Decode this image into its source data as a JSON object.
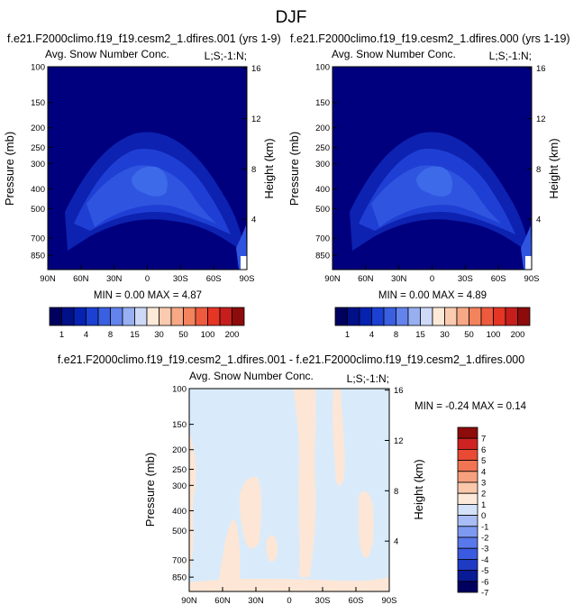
{
  "title": "DJF",
  "panels": [
    {
      "case_title": "f.e21.F2000climo.f19_f19.cesm2_1.dfires.001 (yrs 1-9)",
      "left_label": "Avg. Snow Number Conc.",
      "right_label": "L;S;-1:N;",
      "stats": "MIN =  0.00  MAX =  4.87"
    },
    {
      "case_title": "f.e21.F2000climo.f19_f19.cesm2_1.dfires.000 (yrs 1-19)",
      "left_label": "Avg. Snow Number Conc.",
      "right_label": "L;S;-1:N;",
      "stats": "MIN =  0.00  MAX =  4.89"
    },
    {
      "case_title": "f.e21.F2000climo.f19_f19.cesm2_1.dfires.001 - f.e21.F2000climo.f19_f19.cesm2_1.dfires.000",
      "left_label": "Avg. Snow Number Conc.",
      "right_label": "L;S;-1:N;",
      "stats": "MIN = -0.24  MAX =  0.14"
    }
  ],
  "colors": {
    "abs_fill": [
      "#00007f",
      "#001fb4",
      "#1d3fd6",
      "#3660e5",
      "#5b86ef"
    ],
    "diff_fill": [
      "#d9ebfb",
      "#fde6d5"
    ],
    "abs_colorbar": [
      "#00005e",
      "#001089",
      "#0522b0",
      "#1c40d2",
      "#3a5fe0",
      "#6383ed",
      "#98b0f2",
      "#cdd9f7",
      "#fde9d8",
      "#fbcbb0",
      "#f7a884",
      "#f2835d",
      "#ee5a3d",
      "#e53525",
      "#c51e1c",
      "#8d0b0b"
    ],
    "diff_colorbar": [
      "#00005e",
      "#0a1a95",
      "#1f3bc4",
      "#3a5be0",
      "#5878ec",
      "#7e99f2",
      "#a9bdf6",
      "#d4e3fa",
      "#fde9d9",
      "#fbc8ac",
      "#f7a07d",
      "#f17553",
      "#e94a34",
      "#cf2222",
      "#8d0b0b"
    ]
  },
  "chart_data": [
    {
      "type": "contour",
      "title": "Avg. Snow Number Conc.",
      "subtitle": "f.e21.F2000climo.f19_f19.cesm2_1.dfires.001 (yrs 1-9)",
      "xlabel": "",
      "ylabel": "Pressure (mb)",
      "y2label": "Height (km)",
      "x_ticks": [
        "90N",
        "60N",
        "30N",
        "0",
        "30S",
        "60S",
        "90S"
      ],
      "x_tick_values": [
        90,
        60,
        30,
        0,
        -30,
        -60,
        -90
      ],
      "y_ticks": [
        100,
        150,
        200,
        250,
        300,
        400,
        500,
        700,
        850
      ],
      "y_scale": "log",
      "y_range": [
        1000,
        100
      ],
      "y2_ticks": [
        4,
        8,
        12,
        16
      ],
      "min": 0.0,
      "max": 4.87,
      "levels": [
        1,
        4,
        8,
        10,
        15,
        20,
        30,
        40,
        50,
        60,
        100,
        120,
        200
      ]
    },
    {
      "type": "contour",
      "title": "Avg. Snow Number Conc.",
      "subtitle": "f.e21.F2000climo.f19_f19.cesm2_1.dfires.000 (yrs 1-19)",
      "xlabel": "",
      "ylabel": "Pressure (mb)",
      "y2label": "Height (km)",
      "x_ticks": [
        "90N",
        "60N",
        "30N",
        "0",
        "30S",
        "60S",
        "90S"
      ],
      "x_tick_values": [
        90,
        60,
        30,
        0,
        -30,
        -60,
        -90
      ],
      "y_ticks": [
        100,
        150,
        200,
        250,
        300,
        400,
        500,
        700,
        850
      ],
      "y_scale": "log",
      "y_range": [
        1000,
        100
      ],
      "y2_ticks": [
        4,
        8,
        12,
        16
      ],
      "min": 0.0,
      "max": 4.89,
      "levels": [
        1,
        4,
        8,
        10,
        15,
        20,
        30,
        40,
        50,
        60,
        100,
        120,
        200
      ]
    },
    {
      "type": "contour",
      "title": "Avg. Snow Number Conc.",
      "subtitle": "f.e21.F2000climo.f19_f19.cesm2_1.dfires.001 - f.e21.F2000climo.f19_f19.cesm2_1.dfires.000",
      "xlabel": "",
      "ylabel": "Pressure (mb)",
      "y2label": "Height (km)",
      "x_ticks": [
        "90N",
        "60N",
        "30N",
        "0",
        "30S",
        "60S",
        "90S"
      ],
      "x_tick_values": [
        90,
        60,
        30,
        0,
        -30,
        -60,
        -90
      ],
      "y_ticks": [
        100,
        150,
        200,
        250,
        300,
        400,
        500,
        700,
        850
      ],
      "y_scale": "log",
      "y_range": [
        1000,
        100
      ],
      "y2_ticks": [
        4,
        8,
        12,
        16
      ],
      "min": -0.24,
      "max": 0.14,
      "levels": [
        -7,
        -6,
        -5,
        -4,
        -3,
        -2,
        -1,
        0,
        1,
        2,
        3,
        4,
        5,
        6,
        7
      ]
    }
  ],
  "abs_colorbar_labels": [
    "1",
    "4",
    "8",
    "15",
    "30",
    "50",
    "100",
    "200"
  ],
  "diff_colorbar_labels": [
    "7",
    "6",
    "5",
    "4",
    "3",
    "2",
    "1",
    "0",
    "-1",
    "-2",
    "-3",
    "-4",
    "-5",
    "-6",
    "-7"
  ]
}
